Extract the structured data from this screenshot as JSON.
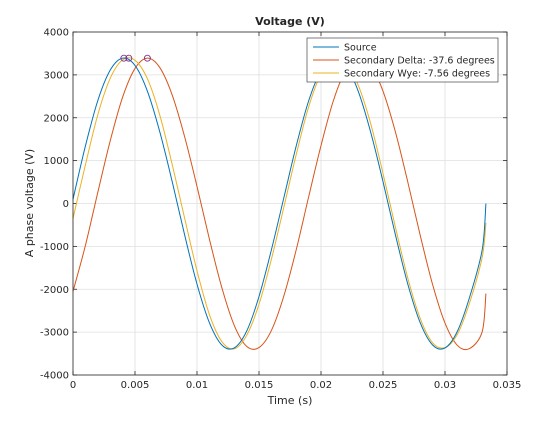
{
  "chart_data": {
    "type": "line",
    "title": "Voltage (V)",
    "xlabel": "Time (s)",
    "ylabel": "A phase voltage (V)",
    "xlim": [
      0,
      0.035
    ],
    "ylim": [
      -4000,
      4000
    ],
    "xticks": [
      0,
      0.005,
      0.01,
      0.015,
      0.02,
      0.025,
      0.03,
      0.035
    ],
    "xtick_labels": [
      "0",
      "0.005",
      "0.01",
      "0.015",
      "0.02",
      "0.025",
      "0.03",
      "0.035"
    ],
    "yticks": [
      -4000,
      -3000,
      -2000,
      -1000,
      0,
      1000,
      2000,
      3000,
      4000
    ],
    "ytick_labels": [
      "-4000",
      "-3000",
      "-2000",
      "-1000",
      "0",
      "1000",
      "2000",
      "3000",
      "4000"
    ],
    "grid": true,
    "legend_position": "top-right",
    "series": [
      {
        "name": "Source",
        "color": "#0072BD",
        "x": [
          0,
          0.001,
          0.002,
          0.003,
          0.004,
          0.005,
          0.006,
          0.007,
          0.008,
          0.009,
          0.01,
          0.011,
          0.012,
          0.013,
          0.014,
          0.015,
          0.016,
          0.017,
          0.018,
          0.019,
          0.02,
          0.021,
          0.022,
          0.023,
          0.024,
          0.025,
          0.026,
          0.027,
          0.028,
          0.029,
          0.03,
          0.031,
          0.032,
          0.033,
          0.0333
        ],
        "y": [
          100,
          1340,
          2400,
          3110,
          3390,
          3220,
          2620,
          1670,
          510,
          -730,
          -1880,
          -2780,
          -3300,
          -3370,
          -2980,
          -2170,
          -1080,
          130,
          1340,
          2390,
          3100,
          3390,
          3220,
          2620,
          1670,
          510,
          -730,
          -1880,
          -2780,
          -3300,
          -3370,
          -2980,
          -2170,
          -1080,
          0
        ]
      },
      {
        "name": "Secondary Delta: -37.6 degrees",
        "color": "#D95319",
        "x": [
          0,
          0.001,
          0.002,
          0.003,
          0.004,
          0.005,
          0.006,
          0.007,
          0.008,
          0.009,
          0.01,
          0.011,
          0.012,
          0.013,
          0.014,
          0.015,
          0.016,
          0.017,
          0.018,
          0.019,
          0.02,
          0.021,
          0.022,
          0.023,
          0.024,
          0.025,
          0.026,
          0.027,
          0.028,
          0.029,
          0.03,
          0.031,
          0.032,
          0.033,
          0.0333
        ],
        "y": [
          -2050,
          -980,
          260,
          1460,
          2480,
          3150,
          3390,
          3170,
          2530,
          1560,
          400,
          -830,
          -1960,
          -2840,
          -3330,
          -3360,
          -2960,
          -2160,
          -1080,
          150,
          1350,
          2400,
          3110,
          3390,
          3220,
          2620,
          1670,
          500,
          -740,
          -1890,
          -2790,
          -3310,
          -3380,
          -2990,
          -2100
        ]
      },
      {
        "name": "Secondary Wye: -7.56 degrees",
        "color": "#EDB120",
        "x": [
          0,
          0.001,
          0.002,
          0.003,
          0.004,
          0.005,
          0.006,
          0.007,
          0.008,
          0.009,
          0.01,
          0.011,
          0.012,
          0.013,
          0.014,
          0.015,
          0.016,
          0.017,
          0.018,
          0.019,
          0.02,
          0.021,
          0.022,
          0.023,
          0.024,
          0.025,
          0.026,
          0.027,
          0.028,
          0.029,
          0.03,
          0.031,
          0.032,
          0.033,
          0.0333
        ],
        "y": [
          -350,
          900,
          2070,
          2920,
          3350,
          3340,
          2910,
          2060,
          910,
          -340,
          -1570,
          -2590,
          -3220,
          -3390,
          -3080,
          -2350,
          -1300,
          -90,
          1140,
          2250,
          3020,
          3380,
          3280,
          2760,
          1870,
          700,
          -550,
          -1740,
          -2680,
          -3250,
          -3360,
          -3050,
          -2300,
          -1250,
          -450
        ]
      }
    ],
    "markers": {
      "color": "#7E2F8E",
      "points": [
        {
          "x": 0.0041,
          "y": 3390
        },
        {
          "x": 0.0045,
          "y": 3390
        },
        {
          "x": 0.006,
          "y": 3390
        }
      ]
    }
  }
}
